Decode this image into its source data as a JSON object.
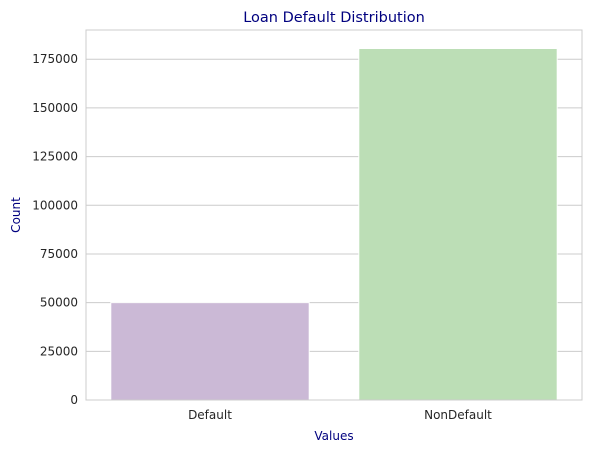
{
  "chart_data": {
    "type": "bar",
    "title": "Loan Default Distribution",
    "xlabel": "Values",
    "ylabel": "Count",
    "categories": [
      "Default",
      "NonDefault"
    ],
    "values": [
      50000,
      180500
    ],
    "ylim": [
      0,
      190000
    ],
    "yticks": [
      0,
      25000,
      50000,
      75000,
      100000,
      125000,
      150000,
      175000
    ],
    "ytick_labels": [
      "0",
      "25000",
      "50000",
      "75000",
      "100000",
      "125000",
      "150000",
      "175000"
    ],
    "grid": "horizontal",
    "colors": {
      "bars": [
        "#cbb9d6",
        "#bcdeb6"
      ],
      "title": "#00007f",
      "axis_labels": "#00007f",
      "grid": "#cccccc",
      "frame": "#cccccc"
    }
  }
}
